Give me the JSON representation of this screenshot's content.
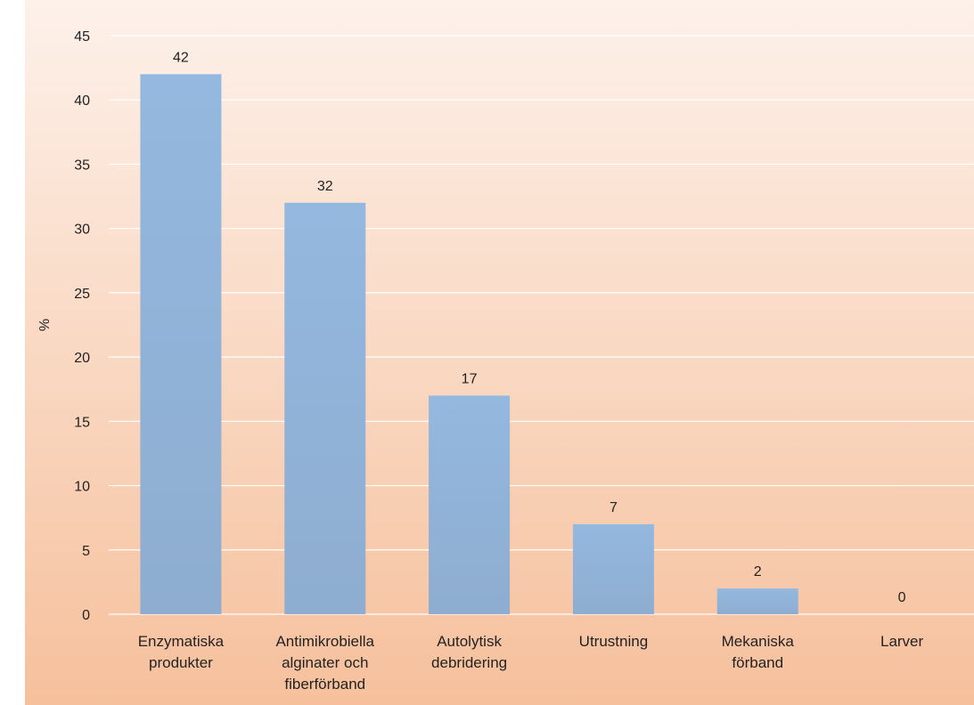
{
  "chart_data": {
    "type": "bar",
    "title": "",
    "xlabel": "",
    "ylabel": "%",
    "ylim": [
      0,
      45
    ],
    "yticks": [
      0,
      5,
      10,
      15,
      20,
      25,
      30,
      35,
      40,
      45
    ],
    "grid": true,
    "legend": "none",
    "categories": [
      [
        "Enzymatiska",
        "produkter"
      ],
      [
        "Antimikrobiella",
        "alginater och",
        "fiberförband"
      ],
      [
        "Autolytisk",
        "debridering"
      ],
      [
        "Utrustning"
      ],
      [
        "Mekaniska",
        "förband"
      ],
      [
        "Larver"
      ]
    ],
    "values": [
      42,
      32,
      17,
      7,
      2,
      0
    ],
    "colors": {
      "bar": "#8eadd0",
      "bar_top": "#94b8df",
      "background_top": "#fdf1ea",
      "background_bottom": "#f6c09c",
      "grid": "#ffffff"
    }
  }
}
